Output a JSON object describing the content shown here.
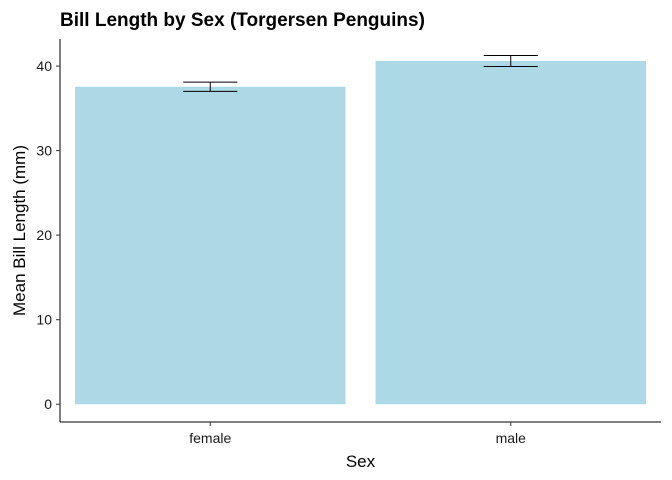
{
  "chart_data": {
    "type": "bar",
    "title": "Bill Length by Sex (Torgersen Penguins)",
    "xlabel": "Sex",
    "ylabel": "Mean Bill Length (mm)",
    "categories": [
      "female",
      "male"
    ],
    "values": [
      37.55,
      40.6
    ],
    "error_low": [
      37.0,
      39.95
    ],
    "error_high": [
      38.1,
      41.25
    ],
    "ylim": [
      -2.1,
      43.2
    ],
    "yticks": [
      0,
      10,
      20,
      30,
      40
    ],
    "grid": false,
    "legend": "none",
    "bar_color": "#add8e6",
    "error_bar_color": "#000000"
  }
}
